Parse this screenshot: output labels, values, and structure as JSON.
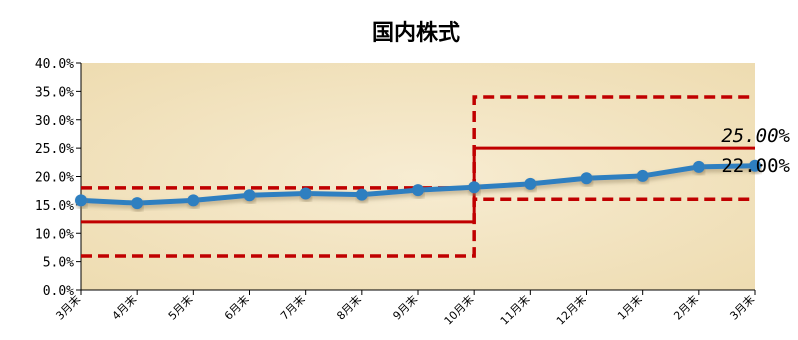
{
  "chart_data": {
    "type": "line",
    "title": "国内株式",
    "categories": [
      "3月末",
      "4月末",
      "5月末",
      "6月末",
      "7月末",
      "8月末",
      "9月末",
      "10月末",
      "11月末",
      "12月末",
      "1月末",
      "2月末",
      "3月末"
    ],
    "series": [
      {
        "values": [
          15.8,
          15.3,
          15.8,
          16.7,
          17.0,
          16.8,
          17.6,
          18.1,
          18.7,
          19.7,
          20.1,
          21.7,
          21.9
        ]
      }
    ],
    "ylim": [
      0,
      40
    ],
    "ytick_labels": [
      "0.0%",
      "5.0%",
      "10.0%",
      "15.0%",
      "20.0%",
      "25.0%",
      "30.0%",
      "35.0%",
      "40.0%"
    ],
    "reference_lines": {
      "target_before": 12,
      "upper_before": 18,
      "lower_before": 6,
      "target_after": 25,
      "upper_after": 34,
      "lower_after": 16,
      "switch_index": 7
    },
    "annotations": [
      {
        "text": "25.00%",
        "value": 25,
        "italic": true
      },
      {
        "text": "22.00%",
        "value": 22,
        "italic": false
      }
    ],
    "grid": false,
    "legend": "none",
    "colors": {
      "series": "#2f7fc0",
      "reference": "#c00000",
      "plot_background": "#f3e6c6"
    }
  }
}
